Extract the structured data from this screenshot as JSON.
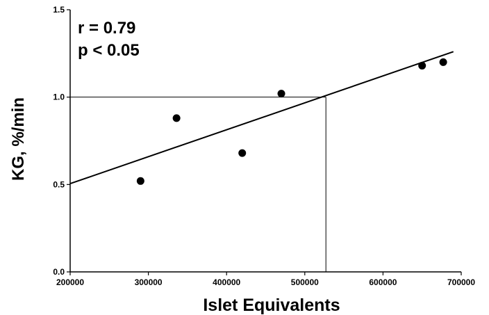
{
  "chart_data": {
    "type": "scatter",
    "x": [
      290000,
      336000,
      420000,
      470000,
      650000,
      677000
    ],
    "y": [
      0.52,
      0.88,
      0.68,
      1.02,
      1.18,
      1.2
    ],
    "xlim": [
      200000,
      700000
    ],
    "ylim": [
      0.0,
      1.5
    ],
    "xticks": [
      "200000",
      "300000",
      "400000",
      "500000",
      "600000",
      "700000"
    ],
    "yticks": [
      "0.0",
      "0.5",
      "1.0",
      "1.5"
    ],
    "xlabel": "Islet Equivalents",
    "ylabel": "KG,  %/min",
    "fit_line": {
      "x": [
        200000,
        690000
      ],
      "y": [
        0.505,
        1.26
      ]
    },
    "reference_lines": {
      "y_value": 1.0,
      "x_value": 527000
    },
    "annotations": {
      "r_text": "r  =  0.79",
      "p_text": "p  <  0.05"
    },
    "grid": false,
    "legend": "none"
  },
  "colors": {
    "ink": "#000000",
    "background": "#ffffff"
  }
}
